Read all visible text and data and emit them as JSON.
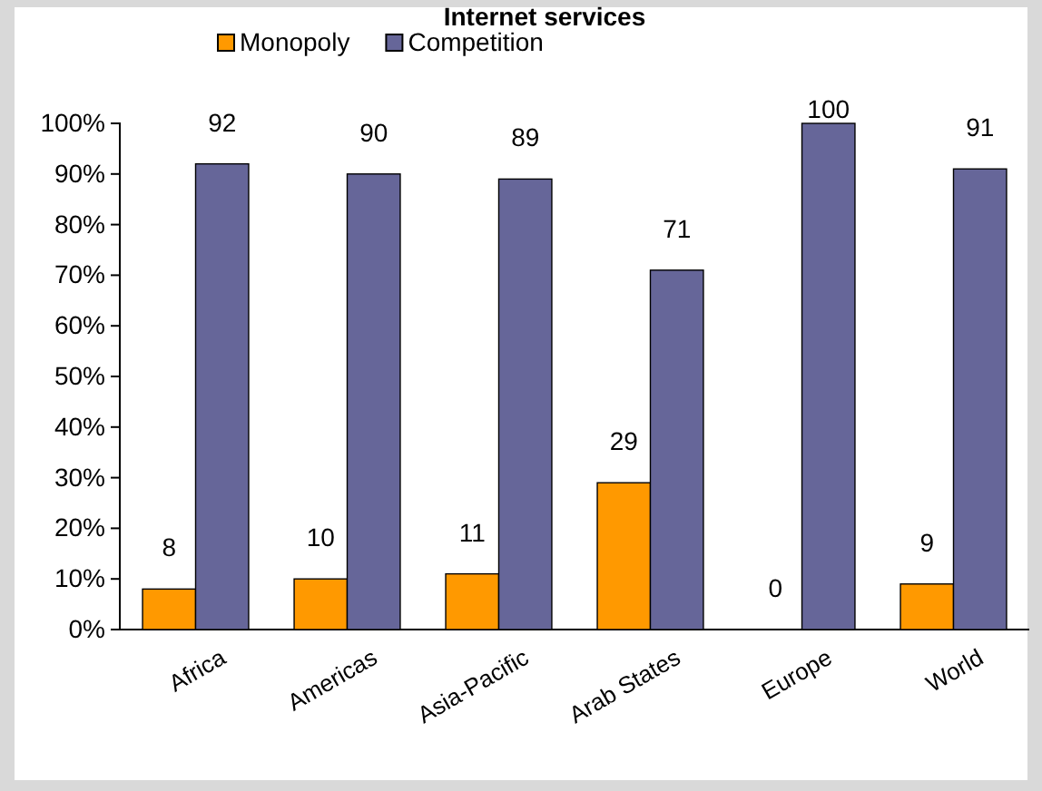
{
  "chart_data": {
    "type": "bar",
    "title": "Internet services",
    "categories": [
      "Africa",
      "Americas",
      "Asia-Pacific",
      "Arab States",
      "Europe",
      "World"
    ],
    "series": [
      {
        "name": "Monopoly",
        "color": "#ff9900",
        "values": [
          8,
          10,
          11,
          29,
          0,
          9
        ]
      },
      {
        "name": "Competition",
        "color": "#666699",
        "values": [
          92,
          90,
          89,
          71,
          100,
          91
        ]
      }
    ],
    "ylim": [
      0,
      100
    ],
    "yticks": [
      {
        "value": 0,
        "label": "0%"
      },
      {
        "value": 10,
        "label": "10%"
      },
      {
        "value": 20,
        "label": "20%"
      },
      {
        "value": 30,
        "label": "30%"
      },
      {
        "value": 40,
        "label": "40%"
      },
      {
        "value": 50,
        "label": "50%"
      },
      {
        "value": 60,
        "label": "60%"
      },
      {
        "value": 70,
        "label": "70%"
      },
      {
        "value": 80,
        "label": "80%"
      },
      {
        "value": 90,
        "label": "90%"
      },
      {
        "value": 100,
        "label": "100%"
      }
    ],
    "data_labels": true,
    "legend": "top"
  }
}
